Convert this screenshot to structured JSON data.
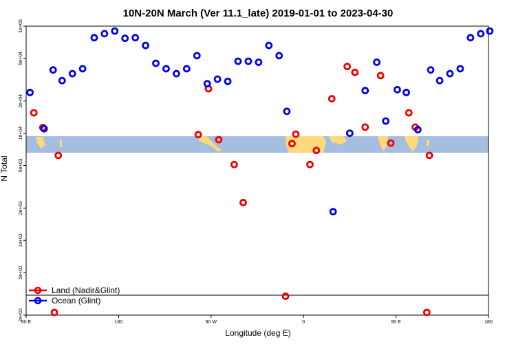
{
  "chart_data": {
    "type": "scatter",
    "title": "10N-20N March (Ver 11.1_late)   2019-01-01 to 2023-04-30",
    "xlabel": "Longitude (deg E)",
    "ylabel": "N Total",
    "x_scale": "linear",
    "y_scale": "log",
    "xlim": [
      90,
      270
    ],
    "ylim": [
      200,
      100000
    ],
    "x_ticks": [
      {
        "value": 90,
        "label": "90 E"
      },
      {
        "value": 126,
        "label": "180"
      },
      {
        "value": 162,
        "label": "90 W"
      },
      {
        "value": 198,
        "label": "0"
      },
      {
        "value": 234,
        "label": "90 E"
      },
      {
        "value": 270,
        "label": "180"
      }
    ],
    "y_ticks": [
      {
        "value": 200,
        "label": "2e+02"
      },
      {
        "value": 500,
        "label": "5e+02"
      },
      {
        "value": 1000,
        "label": "1e+03"
      },
      {
        "value": 2000,
        "label": "2e+03"
      },
      {
        "value": 5000,
        "label": "5e+03"
      },
      {
        "value": 10000,
        "label": "1e+04"
      },
      {
        "value": 20000,
        "label": "2e+04"
      },
      {
        "value": 50000,
        "label": "5e+04"
      },
      {
        "value": 100000,
        "label": "1e+05"
      }
    ],
    "grid": false,
    "legend_position": "bottom-left",
    "series": [
      {
        "name": "Land (Nadir&Glint)",
        "color": "#ee0000",
        "points": [
          [
            93,
            15500
          ],
          [
            96.5,
            11300
          ],
          [
            102.5,
            6200
          ],
          [
            101,
            212
          ],
          [
            157,
            9700
          ],
          [
            161,
            26000
          ],
          [
            165,
            8700
          ],
          [
            171,
            5100
          ],
          [
            174.5,
            2250
          ],
          [
            191,
            300
          ],
          [
            193.5,
            8000
          ],
          [
            195,
            9800
          ],
          [
            200.5,
            5100
          ],
          [
            203,
            6900
          ],
          [
            209,
            21000
          ],
          [
            215,
            42000
          ],
          [
            218,
            37000
          ],
          [
            222,
            11400
          ],
          [
            228,
            34500
          ],
          [
            232,
            8100
          ],
          [
            239,
            15500
          ],
          [
            241.5,
            11400
          ],
          [
            246,
            212
          ],
          [
            247,
            6200
          ]
        ]
      },
      {
        "name": "Ocean (Glint)",
        "color": "#0000ee",
        "points": [
          [
            91.5,
            24000
          ],
          [
            97,
            11000
          ],
          [
            100.5,
            39000
          ],
          [
            104,
            31000
          ],
          [
            108,
            36000
          ],
          [
            112,
            40000
          ],
          [
            116.5,
            78000
          ],
          [
            120.5,
            85000
          ],
          [
            124.5,
            90000
          ],
          [
            128.5,
            77000
          ],
          [
            132.5,
            78000
          ],
          [
            136.5,
            66000
          ],
          [
            140.5,
            45000
          ],
          [
            144.5,
            40000
          ],
          [
            148.5,
            36000
          ],
          [
            152.5,
            40000
          ],
          [
            156.5,
            53000
          ],
          [
            160.5,
            29000
          ],
          [
            164.5,
            32000
          ],
          [
            168.5,
            30500
          ],
          [
            172.5,
            47000
          ],
          [
            176.5,
            47000
          ],
          [
            180.5,
            46000
          ],
          [
            184.5,
            66000
          ],
          [
            188.5,
            53000
          ],
          [
            191.5,
            16000
          ],
          [
            216,
            10000
          ],
          [
            209.5,
            1850
          ],
          [
            222,
            25000
          ],
          [
            226.5,
            46000
          ],
          [
            230,
            13000
          ],
          [
            234.5,
            25500
          ],
          [
            238,
            24000
          ],
          [
            242.5,
            10800
          ],
          [
            247.5,
            39000
          ],
          [
            251,
            31000
          ],
          [
            255,
            36000
          ],
          [
            259,
            40000
          ],
          [
            263,
            78000
          ],
          [
            267,
            85000
          ],
          [
            270.5,
            90000
          ]
        ]
      }
    ]
  }
}
